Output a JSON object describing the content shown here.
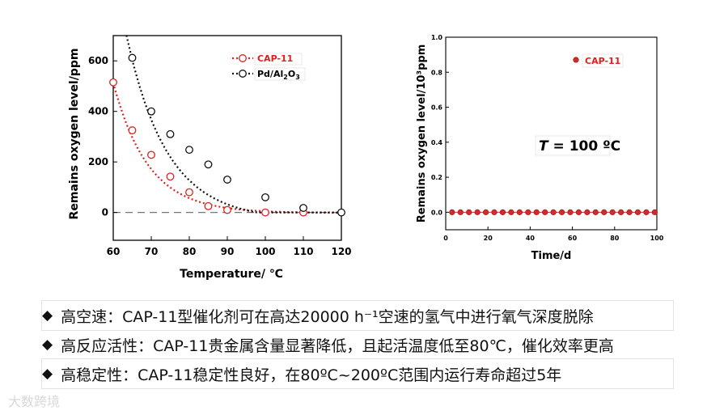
{
  "chart_data": [
    {
      "type": "scatter",
      "title": "",
      "xlabel": "Temperature/ ℃",
      "ylabel": "Remains oxygen level/ppm",
      "xlim": [
        60,
        120
      ],
      "ylim": [
        -110,
        700
      ],
      "xticks": [
        60,
        70,
        80,
        90,
        100,
        110,
        120
      ],
      "yticks": [
        0,
        200,
        400,
        600
      ],
      "series": [
        {
          "name": "CAP-11",
          "color": "#e02020",
          "x": [
            60,
            65,
            70,
            75,
            80,
            85,
            90,
            100,
            110
          ],
          "y": [
            515,
            325,
            228,
            142,
            80,
            25,
            10,
            0,
            0
          ]
        },
        {
          "name": "Pd/Al2O3",
          "color": "#111111",
          "x": [
            65,
            70,
            75,
            80,
            85,
            90,
            100,
            110,
            120
          ],
          "y": [
            612,
            400,
            310,
            248,
            190,
            130,
            60,
            18,
            0
          ]
        }
      ],
      "legend": [
        {
          "prefix": "CAP-11",
          "sub": "",
          "suffix": ""
        },
        {
          "prefix": "Pd/Al",
          "sub": "2",
          "suffix": "O",
          "sub2": "3"
        }
      ]
    },
    {
      "type": "scatter",
      "title": "",
      "xlabel": "Time/d",
      "ylabel": "Remains oxygen level/10³ppm",
      "xlim": [
        0,
        100
      ],
      "ylim": [
        -0.1,
        1.0
      ],
      "xticks": [
        0,
        20,
        40,
        60,
        80,
        100
      ],
      "yticks": [
        0.0,
        0.2,
        0.4,
        0.6,
        0.8,
        1.0
      ],
      "series": [
        {
          "name": "CAP-11",
          "color": "#d42a2a",
          "x": [
            3,
            7,
            11,
            15,
            19,
            23,
            27,
            31,
            35,
            39,
            43,
            47,
            51,
            55,
            59,
            63,
            67,
            71,
            75,
            79,
            83,
            87,
            91,
            95,
            99
          ],
          "y": [
            0,
            0,
            0,
            0,
            0,
            0,
            0,
            0,
            0,
            0,
            0,
            0,
            0,
            0,
            0,
            0,
            0,
            0,
            0,
            0,
            0,
            0,
            0,
            0,
            0
          ]
        }
      ],
      "legend": [
        {
          "prefix": "CAP-11"
        }
      ],
      "annotation": {
        "italic": "T",
        "rest": " = 100 ºC"
      }
    }
  ],
  "bullets": [
    "高空速：CAP-11型催化剂可在高达20000 h⁻¹空速的氢气中进行氧气深度脱除",
    "高反应活性：CAP-11贵金属含量显著降低，且起活温度低至80℃，催化效率更高",
    "高稳定性：CAP-11稳定性良好，在80ºC~200ºC范围内运行寿命超过5年"
  ],
  "bullet_mark": "◆",
  "watermark": "大数跨境"
}
